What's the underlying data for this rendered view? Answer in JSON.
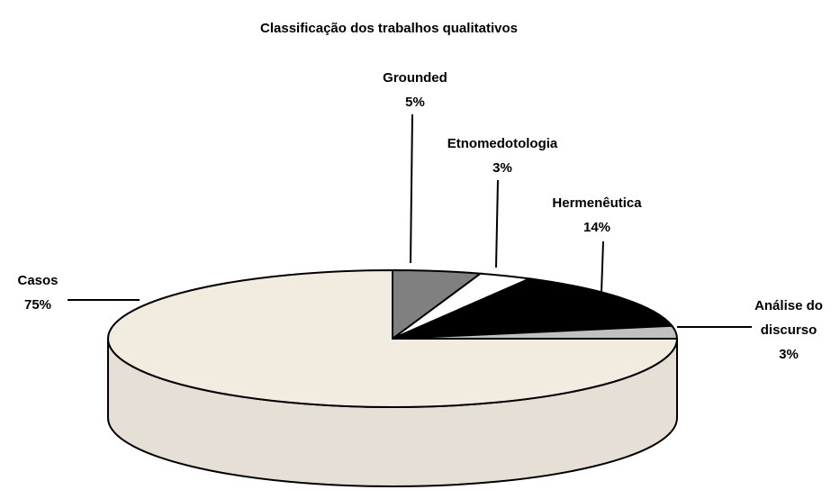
{
  "chart_data": {
    "type": "pie3d",
    "title": "Classificação dos trabalhos qualitativos",
    "categories": [
      "Grounded",
      "Etnomedotologia",
      "Hermenêutica",
      "Análise do discurso",
      "Casos"
    ],
    "values": [
      5,
      3,
      14,
      3,
      75
    ],
    "value_labels": [
      "5%",
      "3%",
      "14%",
      "3%",
      "75%"
    ],
    "colors": [
      "#808080",
      "#ffffff",
      "#000000",
      "#c0c0c0",
      "#f2ebe0"
    ]
  }
}
